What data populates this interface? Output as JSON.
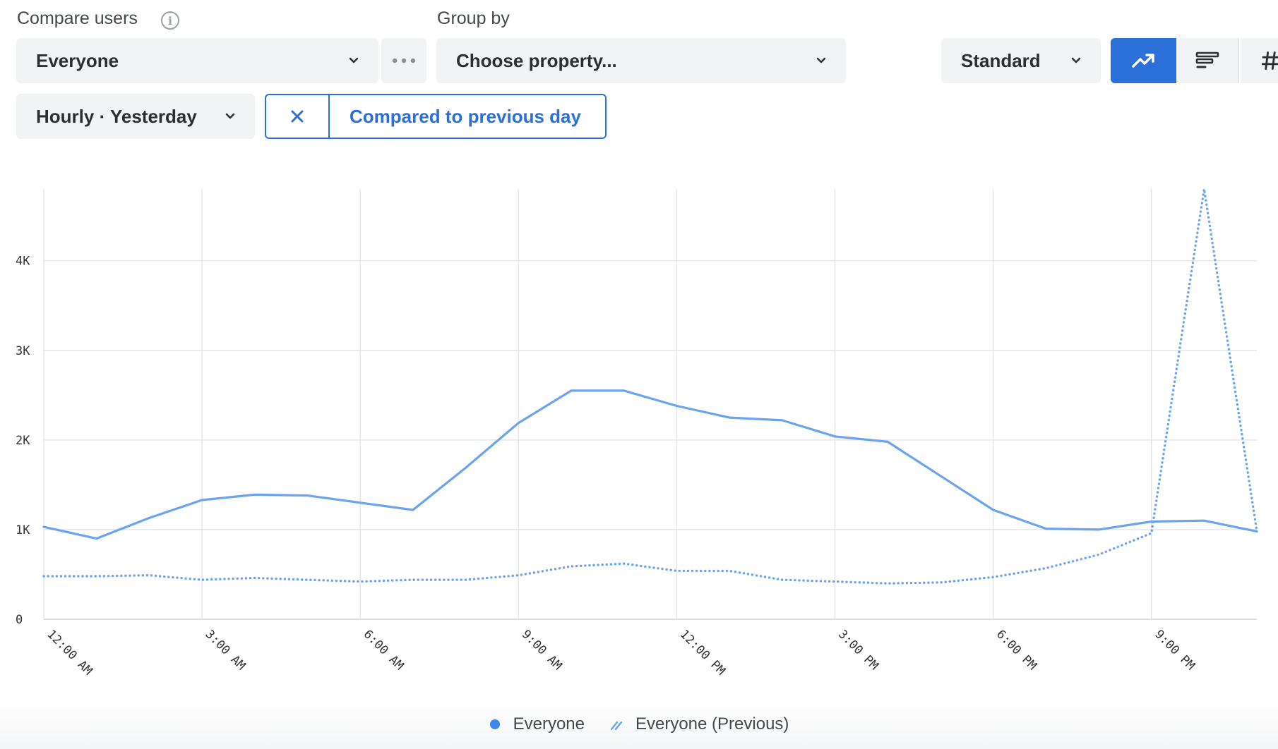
{
  "header": {
    "compare_users_label": "Compare users",
    "group_by_label": "Group by"
  },
  "controls": {
    "users_select_value": "Everyone",
    "property_select_value": "Choose property...",
    "display_mode_value": "Standard",
    "interval_value": "Hourly · Yesterday",
    "compare_chip_label": "Compared to previous day"
  },
  "icons": {
    "info": "info-icon",
    "more": "more-horizontal-icon",
    "chevron": "chevron-down-icon",
    "close": "close-icon",
    "line_chart": "trending-up-icon",
    "bar_chart": "bar-chart-horizontal-icon",
    "number": "hash-icon"
  },
  "colors": {
    "accent": "#2b6fd8",
    "series": "#6aa3ee",
    "control_bg": "#f2f3f4"
  },
  "chart_data": {
    "type": "line",
    "x": [
      "12:00 AM",
      "1:00 AM",
      "2:00 AM",
      "3:00 AM",
      "4:00 AM",
      "5:00 AM",
      "6:00 AM",
      "7:00 AM",
      "8:00 AM",
      "9:00 AM",
      "10:00 AM",
      "11:00 AM",
      "12:00 PM",
      "1:00 PM",
      "2:00 PM",
      "3:00 PM",
      "4:00 PM",
      "5:00 PM",
      "6:00 PM",
      "7:00 PM",
      "8:00 PM",
      "9:00 PM",
      "10:00 PM",
      "11:00 PM"
    ],
    "x_tick_labels": [
      "12:00 AM",
      "3:00 AM",
      "6:00 AM",
      "9:00 AM",
      "12:00 PM",
      "3:00 PM",
      "6:00 PM",
      "9:00 PM"
    ],
    "y_tick_labels": [
      "0",
      "1K",
      "2K",
      "3K",
      "4K"
    ],
    "y_ticks": [
      0,
      1000,
      2000,
      3000,
      4000
    ],
    "ylim": [
      0,
      4800
    ],
    "grid": true,
    "legend_position": "bottom-center",
    "series": [
      {
        "name": "Everyone",
        "style": "solid",
        "values": [
          1030,
          900,
          1130,
          1330,
          1390,
          1380,
          1300,
          1220,
          1690,
          2190,
          2550,
          2550,
          2380,
          2250,
          2220,
          2040,
          1980,
          1600,
          1220,
          1010,
          1000,
          1090,
          1100,
          980
        ]
      },
      {
        "name": "Everyone (Previous)",
        "style": "dotted",
        "values": [
          480,
          480,
          490,
          440,
          460,
          440,
          420,
          440,
          440,
          490,
          590,
          620,
          540,
          540,
          440,
          420,
          400,
          410,
          470,
          570,
          720,
          960,
          4800,
          980
        ]
      }
    ]
  }
}
